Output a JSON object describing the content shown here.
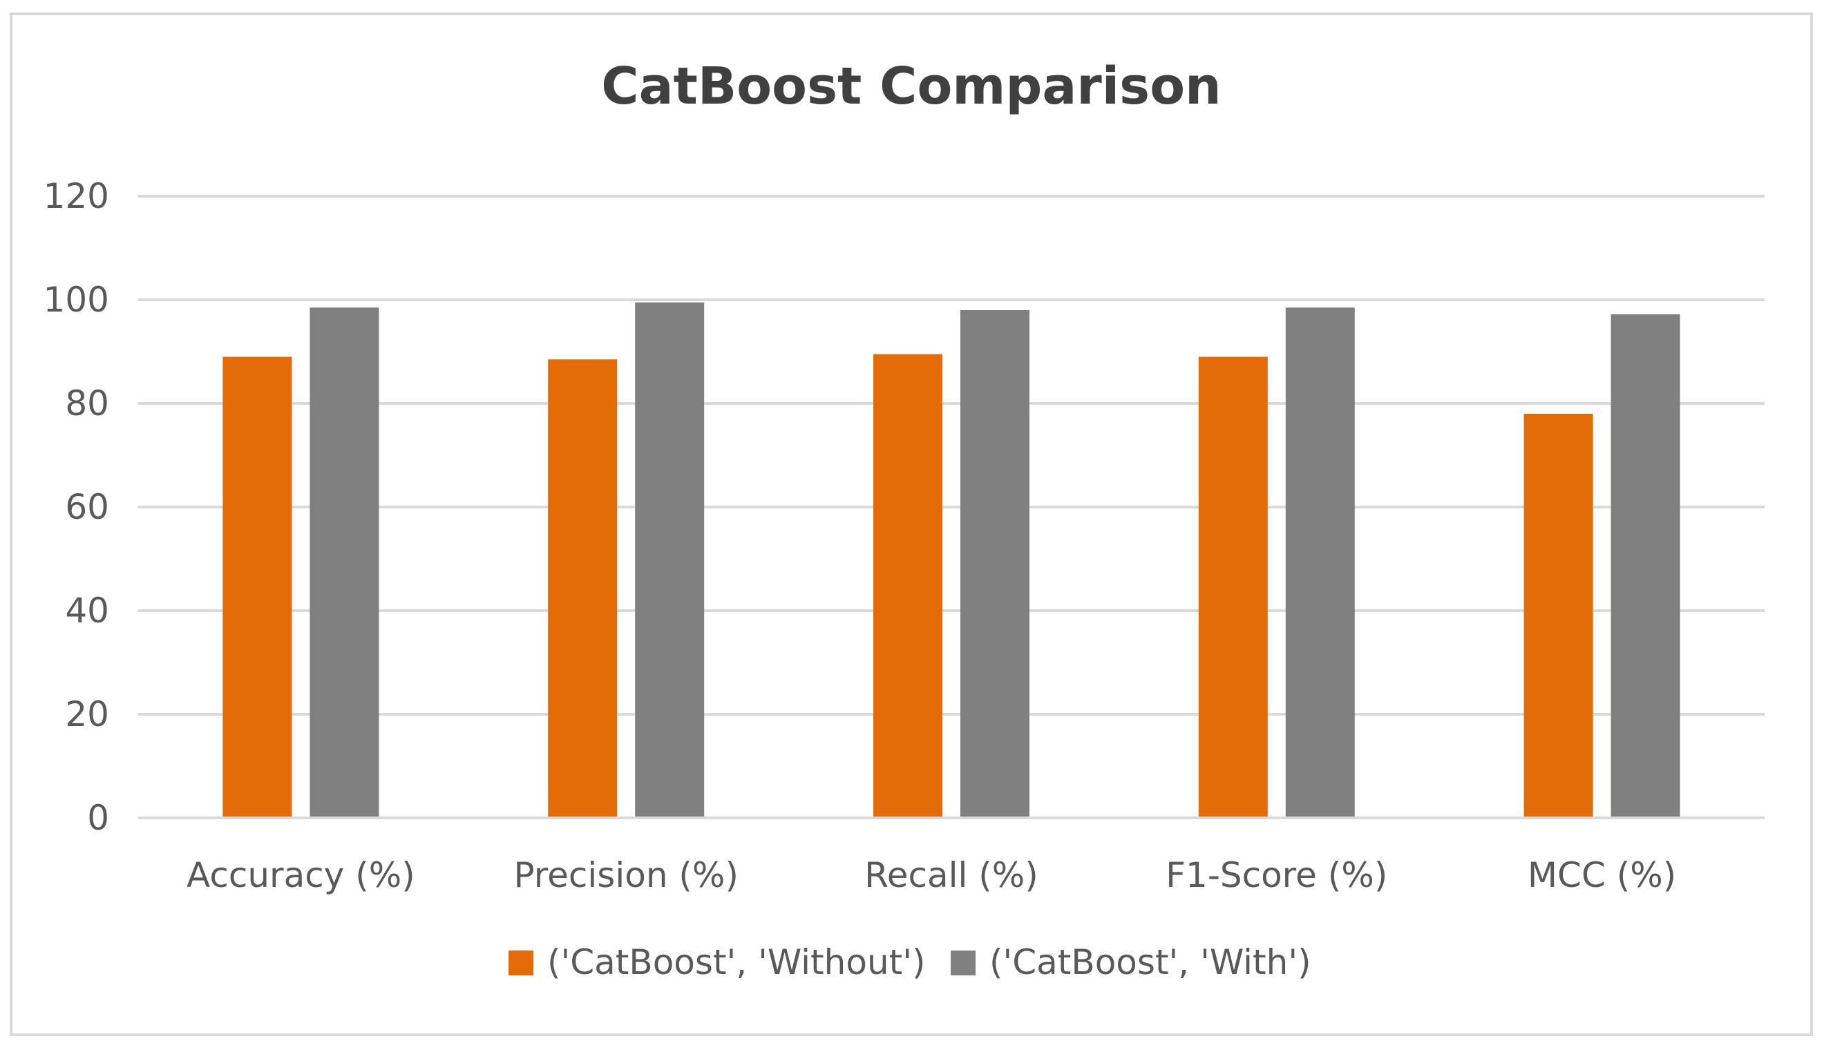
{
  "chart_data": {
    "type": "bar",
    "title": "CatBoost Comparison",
    "xlabel": "",
    "ylabel": "",
    "categories": [
      "Accuracy (%)",
      "Precision (%)",
      "Recall (%)",
      "F1-Score (%)",
      "MCC (%)"
    ],
    "series": [
      {
        "name": "('CatBoost', 'Without')",
        "color": "#e36c09",
        "values": [
          89.0,
          88.5,
          89.5,
          89.0,
          78.0
        ]
      },
      {
        "name": "('CatBoost', 'With')",
        "color": "#808080",
        "values": [
          98.5,
          99.5,
          98.0,
          98.5,
          97.2
        ]
      }
    ],
    "ylim": [
      0,
      120
    ],
    "yticks": [
      0,
      20,
      40,
      60,
      80,
      100,
      120
    ],
    "grid": true,
    "legend": "bottom"
  }
}
